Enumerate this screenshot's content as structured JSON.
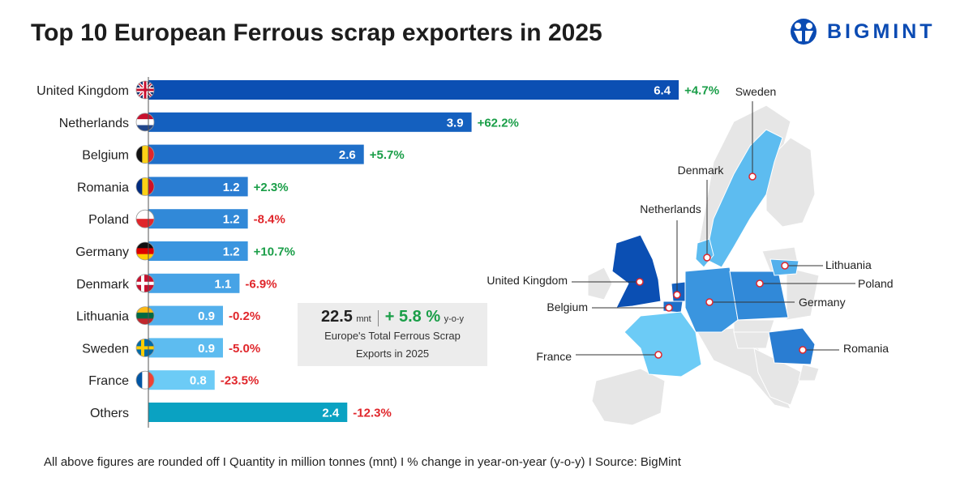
{
  "title": "Top 10 European Ferrous scrap exporters in 2025",
  "logo": {
    "text": "BIGMINT",
    "color": "#0b4bb3"
  },
  "summary": {
    "value": "22.5",
    "unit": "mnt",
    "change": "+ 5.8 %",
    "change_unit": "y-o-y",
    "line1": "Europe's Total Ferrous Scrap",
    "line2": "Exports in 2025"
  },
  "footer": "All above figures are rounded off  I  Quantity in million tonnes (mnt)  I  % change in year-on-year (y-o-y)  I  Source: BigMint",
  "chart_data": {
    "type": "bar",
    "orientation": "horizontal",
    "title": "Top 10 European Ferrous scrap exporters in 2025",
    "unit": "mnt",
    "categories": [
      "United Kingdom",
      "Netherlands",
      "Belgium",
      "Romania",
      "Poland",
      "Germany",
      "Denmark",
      "Lithuania",
      "Sweden",
      "France",
      "Others"
    ],
    "values": [
      6.4,
      3.9,
      2.6,
      1.2,
      1.2,
      1.2,
      1.1,
      0.9,
      0.9,
      0.8,
      2.4
    ],
    "value_labels": [
      "6.4",
      "3.9",
      "2.6",
      "1.2",
      "1.2",
      "1.2",
      "1.1",
      "0.9",
      "0.9",
      "0.8",
      "2.4"
    ],
    "yoy_change": [
      "+4.7%",
      "+62.2%",
      "+5.7%",
      "+2.3%",
      "-8.4%",
      "+10.7%",
      "-6.9%",
      "-0.2%",
      "-5.0%",
      "-23.5%",
      "-12.3%"
    ],
    "bar_colors": [
      "#0b4fb3",
      "#1460bf",
      "#1f6fc9",
      "#2a7dd2",
      "#3189d8",
      "#3a95df",
      "#47a3e6",
      "#53b0ec",
      "#5dbcf0",
      "#6ccbf6",
      "#0aa2c2"
    ],
    "positive_color": "#1a9e48",
    "negative_color": "#e0262b"
  },
  "map": {
    "labels": [
      "Sweden",
      "Denmark",
      "Netherlands",
      "United Kingdom",
      "Belgium",
      "France",
      "Lithuania",
      "Poland",
      "Germany",
      "Romania"
    ]
  }
}
